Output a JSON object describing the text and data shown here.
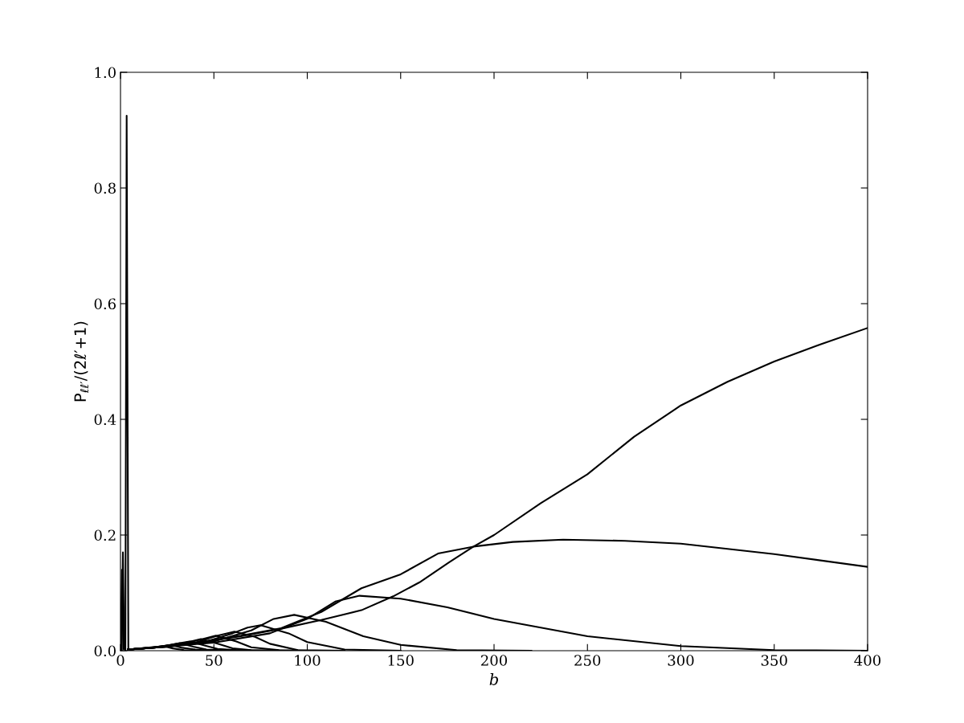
{
  "chart_data": {
    "type": "line",
    "xlabel": "b",
    "ylabel": "P$_{ℓℓ′}$/(2ℓ′+1)",
    "xlim": [
      0,
      400
    ],
    "ylim": [
      0,
      1.0
    ],
    "xticks": [
      0,
      50,
      100,
      150,
      200,
      250,
      300,
      350,
      400
    ],
    "yticks": [
      {
        "value": 0,
        "label": "0.0"
      },
      {
        "value": 0.2,
        "label": "0.2"
      },
      {
        "value": 0.4,
        "label": "0.4"
      },
      {
        "value": 0.6,
        "label": "0.6"
      },
      {
        "value": 0.8,
        "label": "0.8"
      },
      {
        "value": 1.0,
        "label": "1.0"
      }
    ],
    "grid": false,
    "marker": "none",
    "line_style": "solid",
    "series": [
      {
        "color": "#000000",
        "x": [
          0,
          0.8,
          1.5
        ],
        "values": [
          0,
          0.14,
          0.003
        ]
      },
      {
        "color": "#000000",
        "x": [
          0.6,
          1.3,
          2.0
        ],
        "values": [
          0,
          0.17,
          0.003
        ]
      },
      {
        "color": "#000000",
        "x": [
          2.6,
          3.3,
          4.2
        ],
        "values": [
          0,
          0.925,
          0.004
        ]
      },
      {
        "color": "#000000",
        "x": [
          4,
          20,
          40,
          64.5,
          86,
          107.5,
          129,
          146,
          160,
          176,
          189,
          200,
          225,
          250,
          275,
          300,
          325,
          350,
          375,
          400
        ],
        "values": [
          0.002,
          0.006,
          0.013,
          0.025,
          0.038,
          0.053,
          0.07,
          0.094,
          0.118,
          0.153,
          0.18,
          0.2,
          0.255,
          0.305,
          0.37,
          0.424,
          0.465,
          0.5,
          0.53,
          0.558
        ]
      },
      {
        "color": "#000000",
        "x": [
          4,
          20,
          40,
          64.5,
          86,
          107.5,
          129,
          150,
          170,
          189,
          210,
          237,
          270,
          300,
          350,
          400
        ],
        "values": [
          0.002,
          0.006,
          0.014,
          0.026,
          0.039,
          0.067,
          0.108,
          0.132,
          0.168,
          0.18,
          0.188,
          0.192,
          0.19,
          0.185,
          0.167,
          0.145
        ]
      },
      {
        "color": "#000000",
        "x": [
          4,
          25,
          50,
          80,
          100,
          115,
          128,
          150,
          175,
          200,
          250,
          300,
          350,
          400
        ],
        "values": [
          0.002,
          0.007,
          0.014,
          0.03,
          0.055,
          0.085,
          0.095,
          0.09,
          0.075,
          0.055,
          0.025,
          0.008,
          0.001,
          0
        ]
      },
      {
        "color": "#000000",
        "x": [
          4,
          25,
          50,
          70,
          82,
          93,
          110,
          130,
          150,
          180,
          220
        ],
        "values": [
          0.002,
          0.007,
          0.016,
          0.035,
          0.055,
          0.062,
          0.05,
          0.025,
          0.01,
          0.001,
          0
        ]
      },
      {
        "color": "#000000",
        "x": [
          4,
          25,
          45,
          60,
          68,
          75,
          90,
          100,
          120,
          150
        ],
        "values": [
          0.002,
          0.007,
          0.015,
          0.03,
          0.04,
          0.044,
          0.03,
          0.015,
          0.002,
          0
        ]
      },
      {
        "color": "#000000",
        "x": [
          4,
          25,
          40,
          52,
          61,
          72,
          80,
          95,
          120
        ],
        "values": [
          0.002,
          0.007,
          0.014,
          0.026,
          0.033,
          0.024,
          0.012,
          0.001,
          0
        ]
      },
      {
        "color": "#000000",
        "x": [
          4,
          25,
          40,
          51,
          62,
          70,
          85,
          100
        ],
        "values": [
          0.002,
          0.008,
          0.017,
          0.026,
          0.016,
          0.006,
          0.001,
          0
        ]
      },
      {
        "color": "#000000",
        "x": [
          4,
          20,
          35,
          43,
          52,
          60,
          70,
          90
        ],
        "values": [
          0.002,
          0.006,
          0.014,
          0.02,
          0.012,
          0.004,
          0.001,
          0
        ]
      },
      {
        "color": "#000000",
        "x": [
          4,
          20,
          30,
          37,
          45,
          52,
          62,
          80
        ],
        "values": [
          0.002,
          0.006,
          0.012,
          0.016,
          0.009,
          0.003,
          0.001,
          0
        ]
      },
      {
        "color": "#000000",
        "x": [
          4,
          18,
          27,
          32,
          39,
          46,
          55,
          70
        ],
        "values": [
          0.002,
          0.006,
          0.01,
          0.013,
          0.007,
          0.002,
          0.001,
          0
        ]
      },
      {
        "color": "#000000",
        "x": [
          4,
          16,
          23,
          27,
          33,
          40,
          48,
          60
        ],
        "values": [
          0.002,
          0.005,
          0.008,
          0.01,
          0.005,
          0.002,
          0,
          0
        ]
      },
      {
        "color": "#000000",
        "x": [
          4,
          14,
          20,
          23,
          28,
          34,
          42,
          55
        ],
        "values": [
          0.002,
          0.005,
          0.007,
          0.008,
          0.004,
          0.001,
          0,
          0
        ]
      }
    ]
  }
}
